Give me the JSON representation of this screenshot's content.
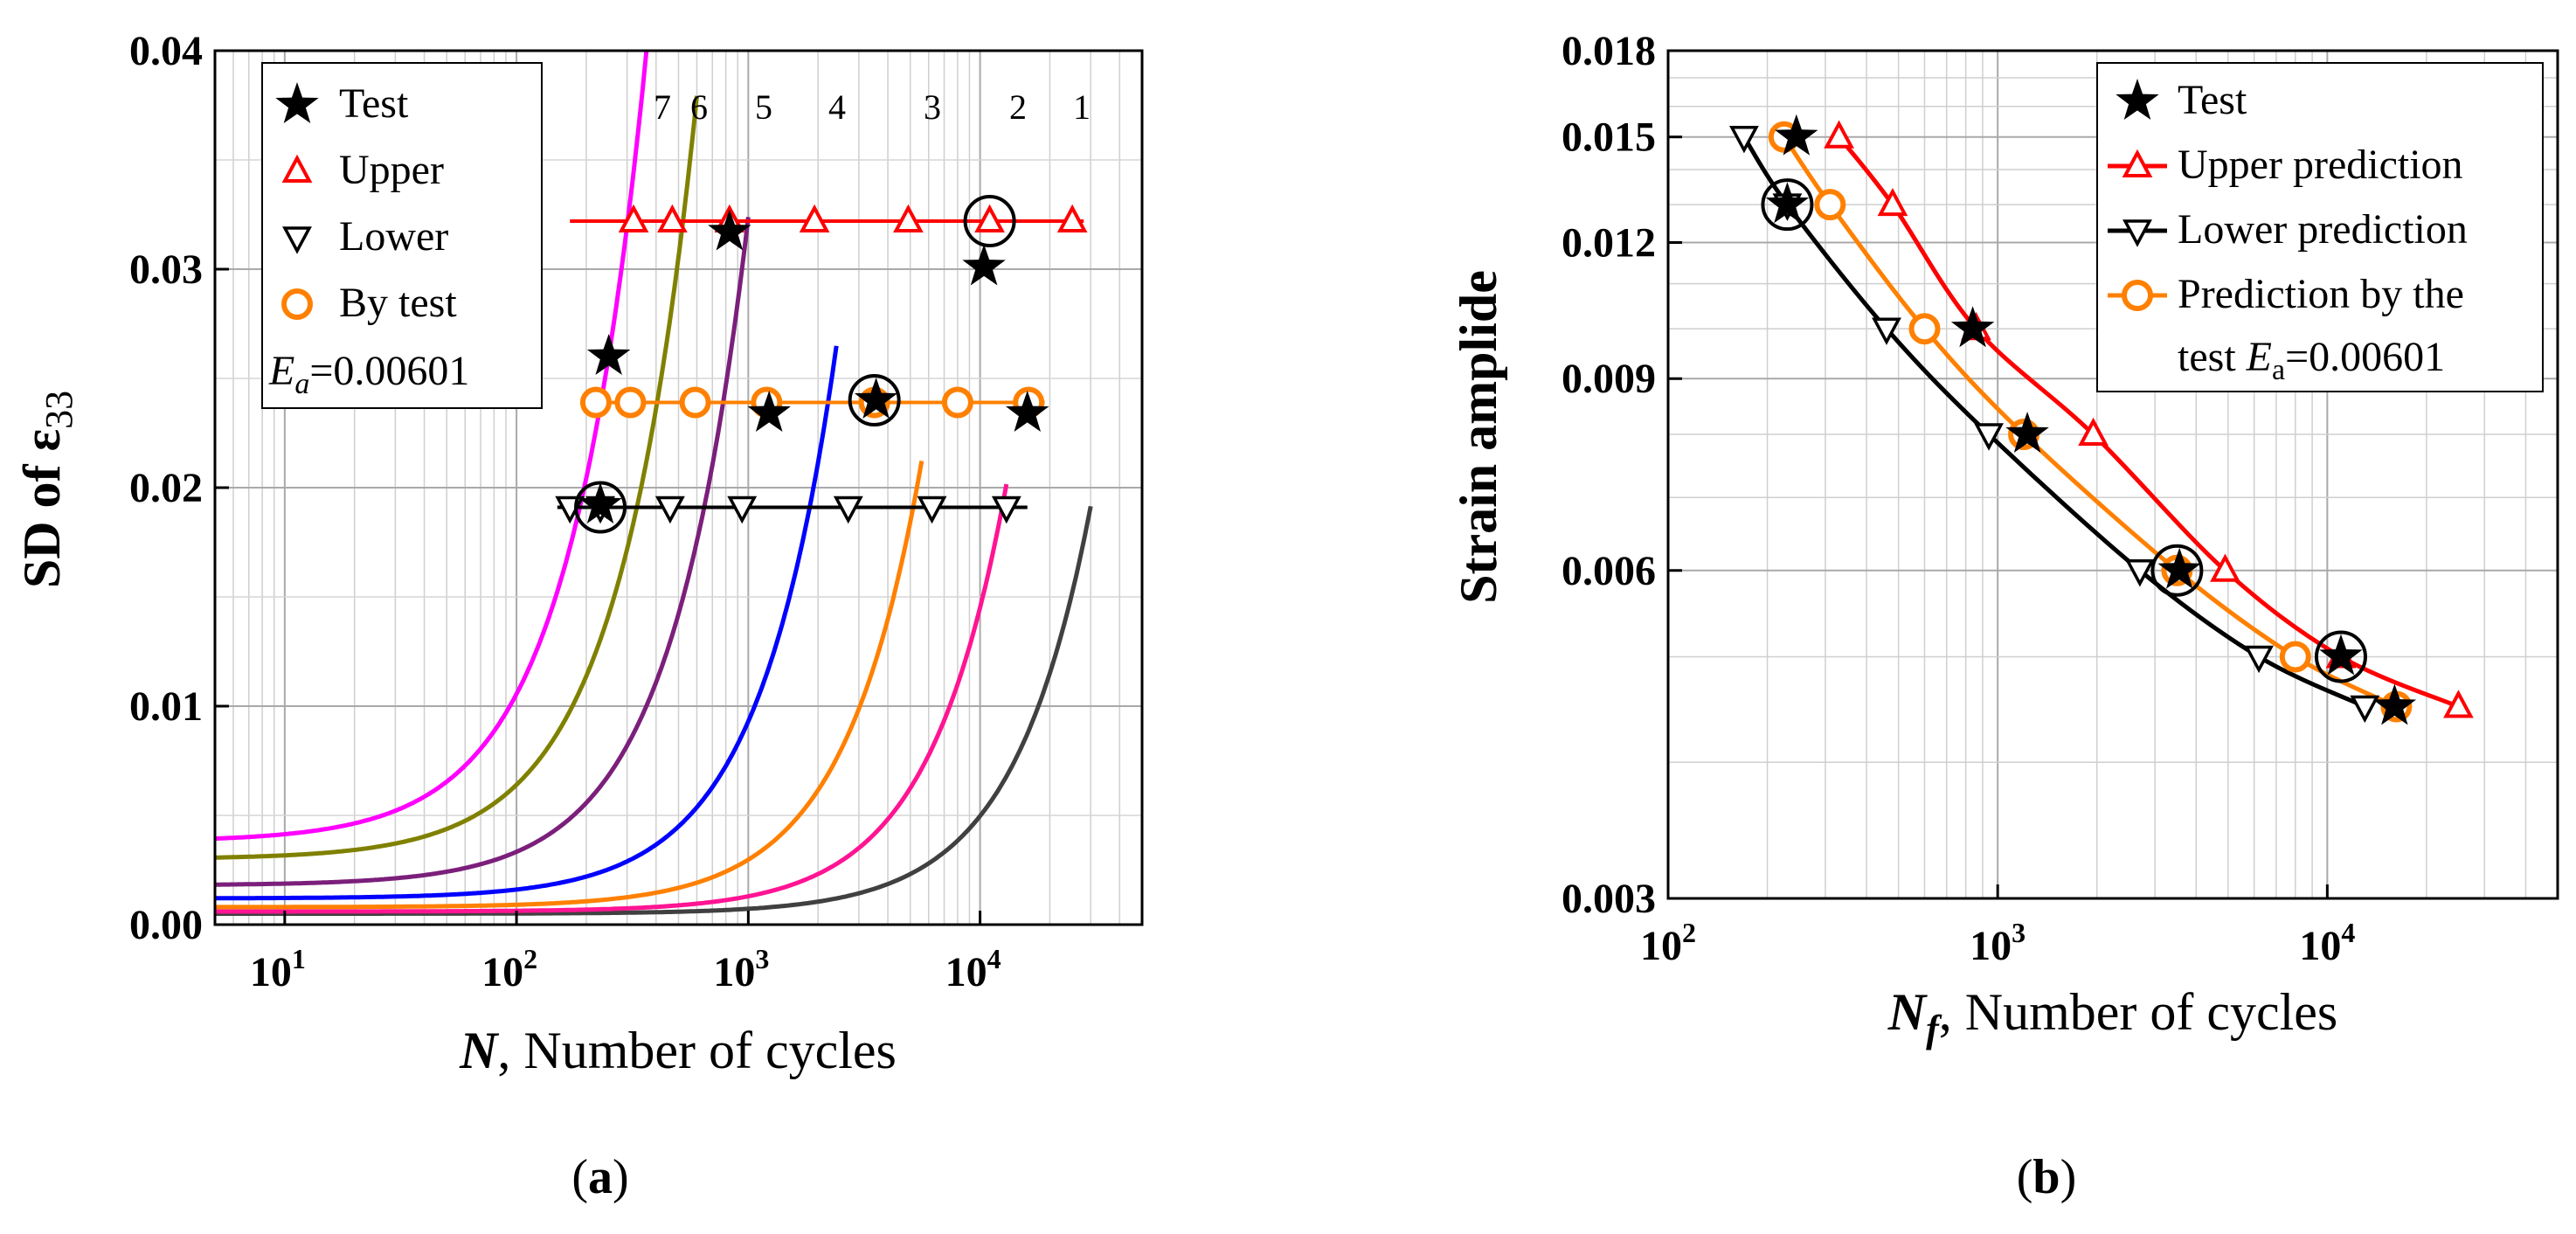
{
  "chart_data": [
    {
      "type": "line",
      "panel_label": "a",
      "title": "",
      "xlabel_symbol": "N",
      "xlabel_text": ", Number of cycles",
      "ylabel_prefix": "SD of ε",
      "ylabel_sub": "33",
      "xscale": "log",
      "xlim": [
        5,
        50000
      ],
      "ylim": [
        0,
        0.04
      ],
      "x_ticks": [
        {
          "base": "10",
          "exp": "1",
          "value": 10
        },
        {
          "base": "10",
          "exp": "2",
          "value": 100
        },
        {
          "base": "10",
          "exp": "3",
          "value": 1000
        },
        {
          "base": "10",
          "exp": "4",
          "value": 10000
        }
      ],
      "y_ticks": [
        {
          "label": "0.00",
          "value": 0
        },
        {
          "label": "0.01",
          "value": 0.01
        },
        {
          "label": "0.02",
          "value": 0.02
        },
        {
          "label": "0.03",
          "value": 0.03
        },
        {
          "label": "0.04",
          "value": 0.04
        }
      ],
      "grid": true,
      "legend_position": "top-left",
      "legend": [
        {
          "label": "Test",
          "marker": "star",
          "color": "#000000"
        },
        {
          "label": "Upper",
          "marker": "triangle-up",
          "color": "#ff0000"
        },
        {
          "label": "Lower",
          "marker": "triangle-down",
          "color": "#000000"
        },
        {
          "label": "By test",
          "marker": "circle",
          "color": "#ff8000"
        }
      ],
      "annotation": {
        "symbol": "E",
        "sub": "a",
        "value": "=0.00601"
      },
      "curves": [
        {
          "name": "1",
          "color": "#404040",
          "base": 0.0005,
          "n0": 3160,
          "m": 1.3,
          "x_end": 30000
        },
        {
          "name": "2",
          "color": "#ff1493",
          "base": 0.0006,
          "n0": 1320,
          "m": 1.3,
          "x_end": 13000
        },
        {
          "name": "3",
          "color": "#ff8000",
          "base": 0.0008,
          "n0": 550,
          "m": 1.3,
          "x_end": 5600
        },
        {
          "name": "4",
          "color": "#0000ff",
          "base": 0.0012,
          "n0": 200,
          "m": 1.3,
          "x_end": 2400
        },
        {
          "name": "5",
          "color": "#7b1f7b",
          "base": 0.0018,
          "n0": 72,
          "m": 1.3,
          "x_end": 1000
        },
        {
          "name": "6",
          "color": "#808000",
          "base": 0.003,
          "n0": 39,
          "m": 1.3,
          "x_end": 600
        },
        {
          "name": "7",
          "color": "#ff00ff",
          "base": 0.0038,
          "n0": 23,
          "m": 1.3,
          "x_end": 400
        }
      ],
      "hlines": [
        {
          "name": "Upper",
          "y": 0.0322,
          "x_range": [
            170,
            28000
          ],
          "color": "#ff0000"
        },
        {
          "name": "By test",
          "y": 0.0239,
          "x_range": [
            190,
            19000
          ],
          "color": "#ff8000"
        },
        {
          "name": "Lower",
          "y": 0.0191,
          "x_range": [
            150,
            16000
          ],
          "color": "#000000"
        }
      ],
      "upper_points": [
        {
          "x": 320,
          "y": 0.0322
        },
        {
          "x": 470,
          "y": 0.0322
        },
        {
          "x": 830,
          "y": 0.0322
        },
        {
          "x": 1930,
          "y": 0.0322
        },
        {
          "x": 4900,
          "y": 0.0322
        },
        {
          "x": 11000,
          "y": 0.0322
        },
        {
          "x": 25000,
          "y": 0.0322
        }
      ],
      "bytest_points": [
        {
          "x": 220,
          "y": 0.0239
        },
        {
          "x": 310,
          "y": 0.0239
        },
        {
          "x": 590,
          "y": 0.0239
        },
        {
          "x": 1200,
          "y": 0.0239
        },
        {
          "x": 3500,
          "y": 0.0239
        },
        {
          "x": 8000,
          "y": 0.0239
        },
        {
          "x": 16200,
          "y": 0.0239
        }
      ],
      "lower_points": [
        {
          "x": 170,
          "y": 0.0191
        },
        {
          "x": 230,
          "y": 0.0191
        },
        {
          "x": 460,
          "y": 0.0191
        },
        {
          "x": 940,
          "y": 0.0191
        },
        {
          "x": 2700,
          "y": 0.0191
        },
        {
          "x": 6200,
          "y": 0.0191
        },
        {
          "x": 13000,
          "y": 0.0191
        }
      ],
      "test_points": [
        {
          "x": 250,
          "y": 0.026
        },
        {
          "x": 830,
          "y": 0.0317
        },
        {
          "x": 1230,
          "y": 0.0234
        },
        {
          "x": 3560,
          "y": 0.024
        },
        {
          "x": 10400,
          "y": 0.0301
        },
        {
          "x": 16000,
          "y": 0.0234
        },
        {
          "x": 230,
          "y": 0.0192
        }
      ],
      "circled_points": [
        {
          "x": 230,
          "y": 0.0191
        },
        {
          "x": 3500,
          "y": 0.024
        },
        {
          "x": 11000,
          "y": 0.0322
        }
      ]
    },
    {
      "type": "line",
      "panel_label": "b",
      "title": "",
      "xlabel_symbol": "N",
      "xlabel_sub": "f",
      "xlabel_text": ", Number of cycles",
      "ylabel": "Strain amplide",
      "xscale": "log",
      "yscale": "log",
      "xlim": [
        100,
        50000
      ],
      "ylim": [
        0.003,
        0.018
      ],
      "x_ticks": [
        {
          "base": "10",
          "exp": "2",
          "value": 100
        },
        {
          "base": "10",
          "exp": "3",
          "value": 1000
        },
        {
          "base": "10",
          "exp": "4",
          "value": 10000
        }
      ],
      "y_ticks": [
        {
          "label": "0.003",
          "value": 0.003
        },
        {
          "label": "0.006",
          "value": 0.006
        },
        {
          "label": "0.009",
          "value": 0.009
        },
        {
          "label": "0.012",
          "value": 0.012
        },
        {
          "label": "0.015",
          "value": 0.015
        },
        {
          "label": "0.018",
          "value": 0.018
        }
      ],
      "grid": true,
      "legend_position": "top-right",
      "legend": [
        {
          "label": "Test",
          "marker": "star",
          "color": "#000000",
          "line": false
        },
        {
          "label": "Upper prediction",
          "marker": "triangle-up",
          "color": "#ff0000",
          "line": true
        },
        {
          "label": "Lower prediction",
          "marker": "triangle-down",
          "color": "#000000",
          "line": true
        },
        {
          "label": "Prediction by the",
          "label2": "test ",
          "label2_symbol": "E",
          "label2_sub": "a",
          "label2_value": "=0.00601",
          "marker": "circle",
          "color": "#ff8000",
          "line": true
        }
      ],
      "series": [
        {
          "name": "Upper prediction",
          "color": "#ff0000",
          "marker": "triangle-up",
          "points": [
            {
              "x": 330,
              "y": 0.015
            },
            {
              "x": 480,
              "y": 0.013
            },
            {
              "x": 860,
              "y": 0.01
            },
            {
              "x": 1950,
              "y": 0.008
            },
            {
              "x": 4900,
              "y": 0.006
            },
            {
              "x": 11000,
              "y": 0.005
            },
            {
              "x": 25000,
              "y": 0.0045
            }
          ]
        },
        {
          "name": "Lower prediction",
          "color": "#000000",
          "marker": "triangle-down",
          "points": [
            {
              "x": 170,
              "y": 0.015
            },
            {
              "x": 230,
              "y": 0.013
            },
            {
              "x": 460,
              "y": 0.01
            },
            {
              "x": 940,
              "y": 0.008
            },
            {
              "x": 2700,
              "y": 0.006
            },
            {
              "x": 6200,
              "y": 0.005
            },
            {
              "x": 13000,
              "y": 0.0045
            }
          ]
        },
        {
          "name": "Prediction by the test",
          "color": "#ff8000",
          "marker": "circle",
          "points": [
            {
              "x": 225,
              "y": 0.015
            },
            {
              "x": 310,
              "y": 0.013
            },
            {
              "x": 600,
              "y": 0.01
            },
            {
              "x": 1200,
              "y": 0.008
            },
            {
              "x": 3500,
              "y": 0.006
            },
            {
              "x": 8000,
              "y": 0.005
            },
            {
              "x": 16200,
              "y": 0.0045
            }
          ]
        },
        {
          "name": "Test",
          "color": "#000000",
          "marker": "star",
          "points": [
            {
              "x": 245,
              "y": 0.015
            },
            {
              "x": 230,
              "y": 0.013
            },
            {
              "x": 840,
              "y": 0.01
            },
            {
              "x": 1230,
              "y": 0.008
            },
            {
              "x": 3560,
              "y": 0.006
            },
            {
              "x": 11000,
              "y": 0.005
            },
            {
              "x": 16000,
              "y": 0.0045
            }
          ]
        }
      ],
      "circled_points": [
        {
          "x": 230,
          "y": 0.013
        },
        {
          "x": 3500,
          "y": 0.006
        },
        {
          "x": 11000,
          "y": 0.005
        }
      ]
    }
  ]
}
